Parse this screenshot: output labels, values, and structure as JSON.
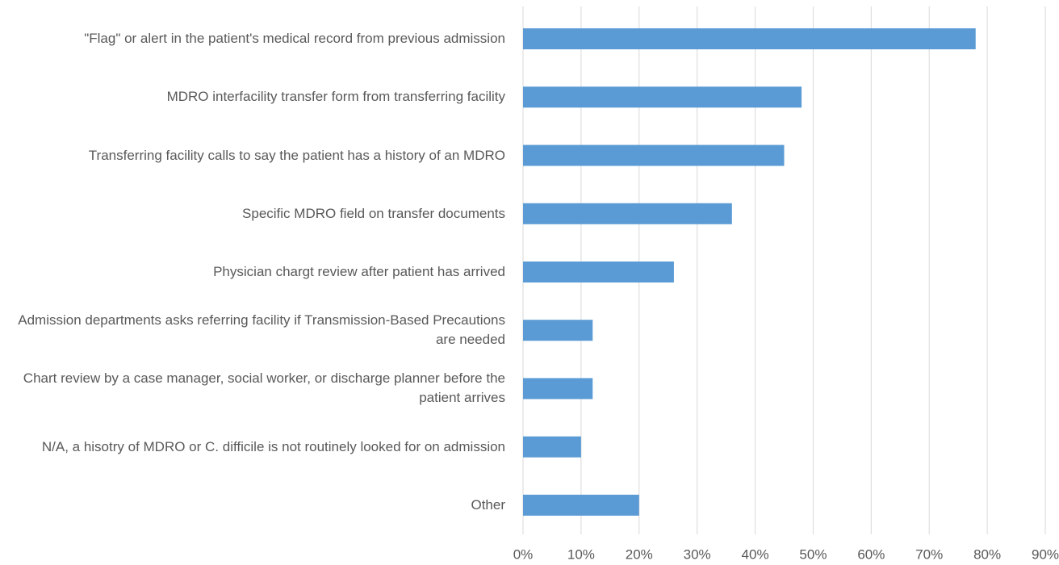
{
  "chart_data": {
    "type": "barh",
    "categories": [
      "\"Flag\" or alert in the patient's medical record from previous admission",
      "MDRO interfacility transfer form from transferring facility",
      "Transferring facility calls to say the patient has a history of an MDRO",
      "Specific MDRO field on transfer documents",
      "Physician chargt review after patient has arrived",
      "Admission departments asks referring facility if Transmission-Based Precautions are needed",
      "Chart review by a case manager, social worker, or discharge planner before the patient arrives",
      "N/A, a hisotry of MDRO or C. difficile is not routinely looked for on admission",
      "Other"
    ],
    "values": [
      78,
      48,
      45,
      36,
      26,
      12,
      12,
      10,
      20
    ],
    "color": "#5b9bd5",
    "xlim": [
      0,
      90
    ],
    "xticks": [
      {
        "value": 0,
        "label": "0%"
      },
      {
        "value": 10,
        "label": "10%"
      },
      {
        "value": 20,
        "label": "20%"
      },
      {
        "value": 30,
        "label": "30%"
      },
      {
        "value": 40,
        "label": "40%"
      },
      {
        "value": 50,
        "label": "50%"
      },
      {
        "value": 60,
        "label": "60%"
      },
      {
        "value": 70,
        "label": "70%"
      },
      {
        "value": 80,
        "label": "80%"
      },
      {
        "value": 90,
        "label": "90%"
      }
    ],
    "grid": true
  }
}
